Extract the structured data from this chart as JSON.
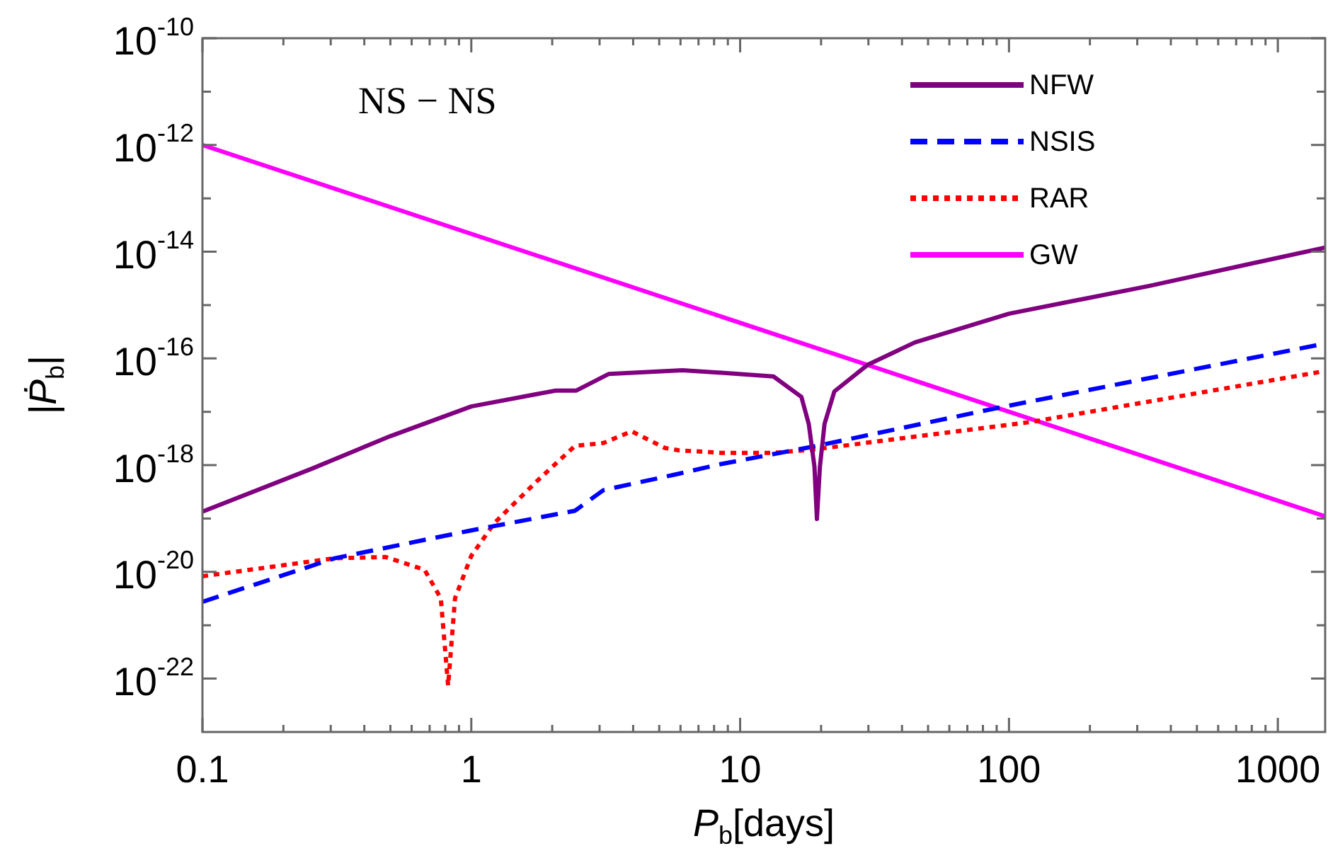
{
  "chart_data": {
    "type": "line",
    "xlabel": "P$_{b}$[days]",
    "ylabel": "|Ṗ$_{b}$|",
    "annotations": [
      "NS − NS"
    ],
    "log": "xy",
    "grid": false,
    "legend": "top right",
    "marker": "none",
    "xlim": [
      0.1,
      1500
    ],
    "ylim": [
      1e-23,
      1e-10
    ],
    "xticks": [
      0.1,
      {
        "value": 0.2,
        "label": null
      },
      {
        "value": 0.3,
        "label": null
      },
      {
        "value": 0.4,
        "label": null
      },
      {
        "value": 0.5,
        "label": null
      },
      {
        "value": 0.6,
        "label": null
      },
      {
        "value": 0.7,
        "label": null
      },
      {
        "value": 0.8,
        "label": null
      },
      {
        "value": 0.9,
        "label": null
      },
      1,
      {
        "value": 2,
        "label": null
      },
      {
        "value": 3,
        "label": null
      },
      {
        "value": 4,
        "label": null
      },
      {
        "value": 5,
        "label": null
      },
      {
        "value": 6,
        "label": null
      },
      {
        "value": 7,
        "label": null
      },
      {
        "value": 8,
        "label": null
      },
      {
        "value": 9,
        "label": null
      },
      10,
      {
        "value": 20,
        "label": null
      },
      {
        "value": 30,
        "label": null
      },
      {
        "value": 40,
        "label": null
      },
      {
        "value": 50,
        "label": null
      },
      {
        "value": 60,
        "label": null
      },
      {
        "value": 70,
        "label": null
      },
      {
        "value": 80,
        "label": null
      },
      {
        "value": 90,
        "label": null
      },
      100,
      {
        "value": 200,
        "label": null
      },
      {
        "value": 300,
        "label": null
      },
      {
        "value": 400,
        "label": null
      },
      {
        "value": 500,
        "label": null
      },
      {
        "value": 600,
        "label": null
      },
      {
        "value": 700,
        "label": null
      },
      {
        "value": 800,
        "label": null
      },
      {
        "value": 900,
        "label": null
      },
      1000
    ],
    "yticks": [
      {
        "value": 1e-10,
        "label": "10$^{-10}$"
      },
      {
        "value": 1e-11,
        "label": null
      },
      {
        "value": 1e-12,
        "label": "10$^{-12}$"
      },
      {
        "value": 1e-13,
        "label": null
      },
      {
        "value": 1e-14,
        "label": "10$^{-14}$"
      },
      {
        "value": 1e-15,
        "label": null
      },
      {
        "value": 1e-16,
        "label": "10$^{-16}$"
      },
      {
        "value": 1e-17,
        "label": null
      },
      {
        "value": 1e-18,
        "label": "10$^{-18}$"
      },
      {
        "value": 1e-19,
        "label": null
      },
      {
        "value": 1e-20,
        "label": "10$^{-20}$"
      },
      {
        "value": 1e-21,
        "label": null
      },
      {
        "value": 1e-22,
        "label": "10$^{-22}$"
      }
    ],
    "series": [
      {
        "name": "NFW",
        "color": "#800080",
        "line_style": "solid",
        "x": [
          0.1,
          0.254,
          0.5,
          1,
          2.06,
          2.46,
          3.24,
          6.1,
          8.5,
          13.3,
          16.9,
          18.0,
          18.9,
          19.3,
          19.8,
          20.6,
          22.4,
          29.8,
          44.7,
          100,
          335,
          1500
        ],
        "values": [
          1.35e-19,
          8.5e-19,
          3.5e-18,
          1.26e-17,
          2.5e-17,
          2.5e-17,
          5.1e-17,
          6e-17,
          5.4e-17,
          4.6e-17,
          1.9e-17,
          5.9e-18,
          9.3e-19,
          9.8e-20,
          9.3e-19,
          5.9e-18,
          2.4e-17,
          7.6e-17,
          2e-16,
          6.9e-16,
          2.3e-15,
          1.2e-14
        ]
      },
      {
        "name": "NSIS",
        "color": "#0000ff",
        "line_style": "dashed",
        "x": [
          0.1,
          0.31,
          1,
          2.43,
          3.1,
          5.9,
          8.5,
          19.3,
          92,
          1500
        ],
        "values": [
          2.75e-21,
          1.8e-20,
          6e-20,
          1.4e-19,
          3.4e-19,
          6.9e-19,
          1.05e-18,
          2.3e-18,
          1.2e-17,
          1.9e-16
        ]
      },
      {
        "name": "RAR",
        "color": "#ff0000",
        "line_style": "dotted",
        "x": [
          0.1,
          0.31,
          0.48,
          0.67,
          0.77,
          0.82,
          0.87,
          1,
          1.22,
          1.76,
          2.43,
          3.1,
          3.95,
          5.25,
          5.9,
          8.5,
          13.3,
          19.3,
          122,
          1500
        ],
        "values": [
          8.3e-21,
          1.8e-20,
          1.9e-20,
          1.1e-20,
          3.2e-21,
          7.4e-23,
          3.2e-21,
          2e-20,
          8.3e-20,
          5.1e-19,
          2.3e-18,
          2.6e-18,
          4.3e-18,
          2.1e-18,
          1.9e-18,
          1.7e-18,
          1.7e-18,
          2e-18,
          6.5e-18,
          5.8e-17
        ]
      },
      {
        "name": "GW",
        "color": "#ff00ff",
        "line_style": "solid",
        "x": [
          0.1,
          1500
        ],
        "values": [
          1e-12,
          1.1e-19
        ]
      }
    ]
  }
}
